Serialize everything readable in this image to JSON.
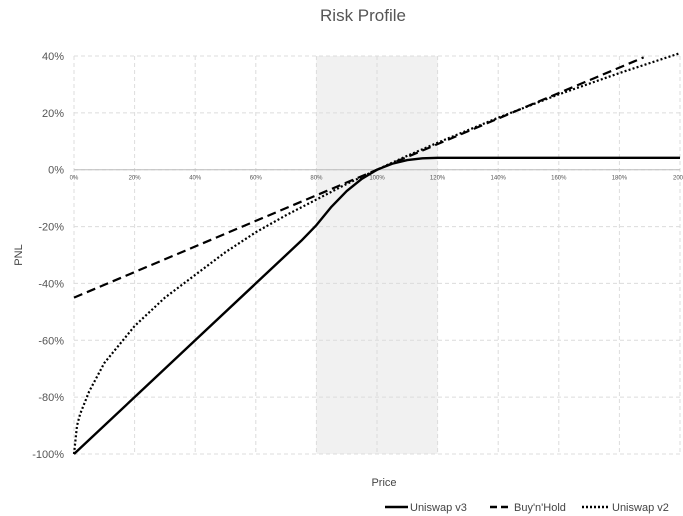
{
  "chart_data": {
    "type": "line",
    "title": "Risk Profile",
    "xlabel": "Price",
    "ylabel": "PNL",
    "xlim": [
      0,
      200
    ],
    "ylim": [
      -100,
      40
    ],
    "x_ticks": [
      0,
      20,
      40,
      60,
      80,
      100,
      120,
      140,
      160,
      180,
      200
    ],
    "x_tick_labels": [
      "0%",
      "20%",
      "40%",
      "60%",
      "80%",
      "100%",
      "120%",
      "140%",
      "160%",
      "180%",
      "200"
    ],
    "y_ticks": [
      40,
      20,
      0,
      -20,
      -40,
      -60,
      -80,
      -100
    ],
    "y_tick_labels": [
      "40%",
      "20%",
      "0%",
      "-20%",
      "-40%",
      "-60%",
      "-80%",
      "-100%"
    ],
    "shaded_range": [
      80,
      120
    ],
    "grid": true,
    "legend_position": "bottom-right",
    "series": [
      {
        "name": "Uniswap v3",
        "style": "solid",
        "x": [
          0,
          20,
          40,
          60,
          70,
          75,
          80,
          85,
          90,
          95,
          100,
          105,
          110,
          115,
          120,
          140,
          160,
          180,
          200
        ],
        "y": [
          -100,
          -80,
          -60,
          -40,
          -30,
          -25,
          -19.5,
          -13,
          -7.5,
          -3.2,
          0,
          2.1,
          3.4,
          4.0,
          4.2,
          4.2,
          4.2,
          4.2,
          4.2
        ]
      },
      {
        "name": "Buy'n'Hold",
        "style": "dashed",
        "x": [
          0,
          50,
          100,
          150,
          188
        ],
        "y": [
          -45,
          -22.5,
          0,
          22.5,
          39.5
        ]
      },
      {
        "name": "Uniswap v2",
        "style": "dotted",
        "x": [
          0,
          1,
          2,
          5,
          10,
          20,
          30,
          40,
          50,
          60,
          70,
          80,
          90,
          100,
          110,
          120,
          140,
          160,
          180,
          200
        ],
        "y": [
          -100,
          -90,
          -86,
          -78,
          -68,
          -55,
          -45,
          -37,
          -29,
          -22,
          -16,
          -10.5,
          -5,
          0,
          4.9,
          9.5,
          18.3,
          26.5,
          34,
          41
        ]
      }
    ]
  }
}
